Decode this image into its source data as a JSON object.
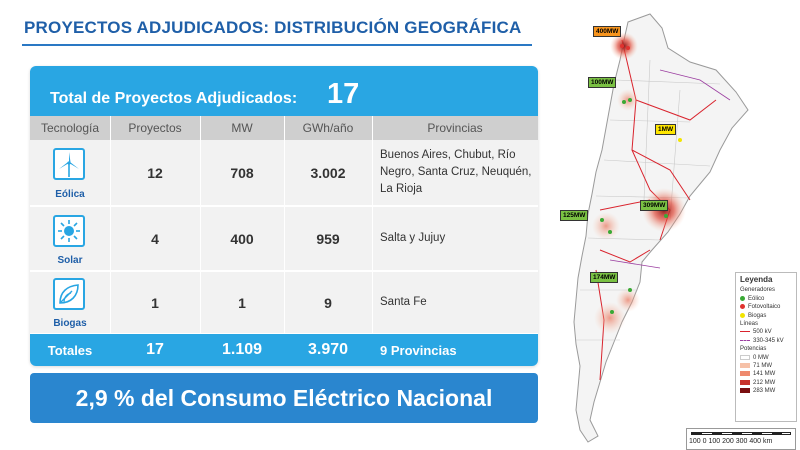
{
  "title": "PROYECTOS ADJUDICADOS: DISTRIBUCIÓN GEOGRÁFICA",
  "summary": {
    "label": "Total de Proyectos Adjudicados:",
    "value": "17"
  },
  "table": {
    "headers": [
      "Tecnología",
      "Proyectos",
      "MW",
      "GWh/año",
      "Provincias"
    ],
    "rows": [
      {
        "tech": "Eólica",
        "icon": "wind-turbine-icon",
        "proyectos": "12",
        "mw": "708",
        "gwh": "3.002",
        "provincias": "Buenos Aires, Chubut, Río Negro, Santa Cruz, Neuquén, La Rioja"
      },
      {
        "tech": "Solar",
        "icon": "sun-icon",
        "proyectos": "4",
        "mw": "400",
        "gwh": "959",
        "provincias": "Salta y Jujuy"
      },
      {
        "tech": "Biogas",
        "icon": "leaf-icon",
        "proyectos": "1",
        "mw": "1",
        "gwh": "9",
        "provincias": "Santa Fe"
      }
    ],
    "totals": {
      "label": "Totales",
      "proyectos": "17",
      "mw": "1.109",
      "gwh": "3.970",
      "provincias": "9 Provincias"
    }
  },
  "consumo": "2,9 % del Consumo Eléctrico Nacional",
  "map": {
    "labels": [
      {
        "text": "400MW",
        "color": "#f7941d"
      },
      {
        "text": "100MW",
        "color": "#7ac143"
      },
      {
        "text": "1MW",
        "color": "#ffe600"
      },
      {
        "text": "309MW",
        "color": "#7ac143"
      },
      {
        "text": "125MW",
        "color": "#7ac143"
      },
      {
        "text": "174MW",
        "color": "#7ac143"
      }
    ],
    "legend": {
      "title": "Leyenda",
      "generadores_title": "Generadores",
      "generadores": [
        {
          "label": "Eólico",
          "color": "#3aa935"
        },
        {
          "label": "Fotovoltaico",
          "color": "#e0332f"
        },
        {
          "label": "Biogas",
          "color": "#f2e400"
        }
      ],
      "lineas_title": "Líneas",
      "lineas": [
        {
          "label": "500 kV",
          "color": "#d9232d"
        },
        {
          "label": "330-345 kV",
          "color": "#9b3ea0"
        }
      ],
      "potencias_title": "Potencias",
      "potencias": [
        {
          "label": "0 MW",
          "color": "#ffffff"
        },
        {
          "label": "71 MW",
          "color": "#f6c1a8"
        },
        {
          "label": "141 MW",
          "color": "#ee8a6e"
        },
        {
          "label": "212 MW",
          "color": "#c8322b"
        },
        {
          "label": "283 MW",
          "color": "#7a0f10"
        }
      ]
    },
    "scale": "100  0   100  200  300  400 km"
  }
}
